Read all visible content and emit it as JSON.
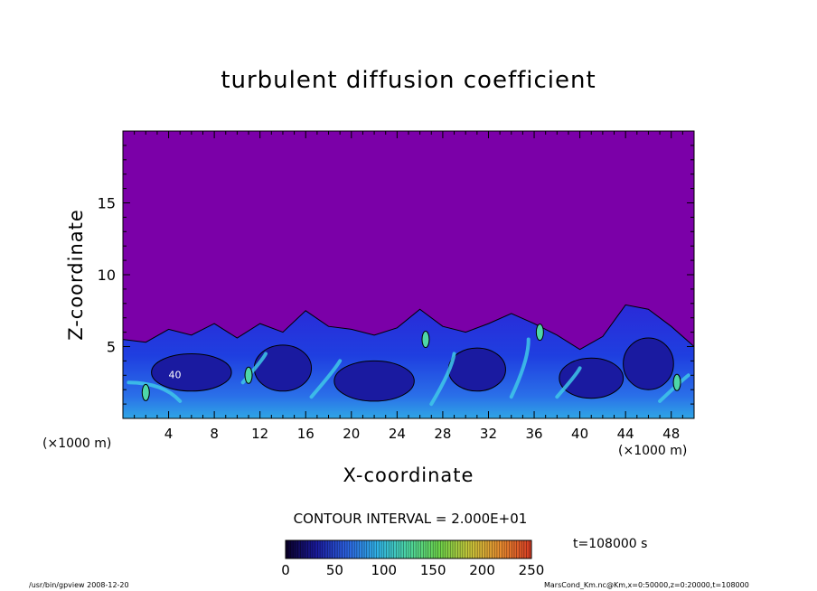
{
  "chart_data": {
    "type": "heatmap",
    "title": "turbulent diffusion coefficient",
    "xlabel": "X-coordinate",
    "ylabel": "Z-coordinate",
    "x_unit_left": "(×1000 m)",
    "x_unit_right": "(×1000 m)",
    "xlim": [
      0,
      50
    ],
    "ylim": [
      0,
      20
    ],
    "xticks": [
      4,
      8,
      12,
      16,
      20,
      24,
      28,
      32,
      36,
      40,
      44,
      48
    ],
    "yticks": [
      5,
      10,
      15
    ],
    "grid": false,
    "contour_interval_text": "CONTOUR INTERVAL = 2.000E+01",
    "contour_label": "40",
    "time_text": "t=108000 s",
    "colorbar": {
      "min": 0,
      "max": 250,
      "ticks": [
        0,
        50,
        100,
        150,
        200,
        250
      ],
      "colors": [
        "#0a0028",
        "#1a1a9c",
        "#2c62e0",
        "#31b4e6",
        "#4dd6a0",
        "#6cd24a",
        "#c8c53a",
        "#e88c30",
        "#d83a24"
      ]
    },
    "background_color": "#7b00a8",
    "turbulent_layer_top": [
      [
        0,
        5.5
      ],
      [
        2,
        5.3
      ],
      [
        4,
        6.2
      ],
      [
        6,
        5.8
      ],
      [
        8,
        6.6
      ],
      [
        10,
        5.6
      ],
      [
        12,
        6.6
      ],
      [
        14,
        6.0
      ],
      [
        16,
        7.5
      ],
      [
        18,
        6.4
      ],
      [
        20,
        6.2
      ],
      [
        22,
        5.8
      ],
      [
        24,
        6.3
      ],
      [
        26,
        7.6
      ],
      [
        28,
        6.4
      ],
      [
        30,
        6.0
      ],
      [
        32,
        6.6
      ],
      [
        34,
        7.3
      ],
      [
        36,
        6.6
      ],
      [
        38,
        5.8
      ],
      [
        40,
        4.8
      ],
      [
        42,
        5.7
      ],
      [
        44,
        7.9
      ],
      [
        46,
        7.6
      ],
      [
        48,
        6.4
      ],
      [
        50,
        5.0
      ]
    ]
  },
  "footer": {
    "left": "/usr/bin/gpview   2008-12-20",
    "right": "MarsCond_Km.nc@Km,x=0:50000,z=0:20000,t=108000"
  }
}
